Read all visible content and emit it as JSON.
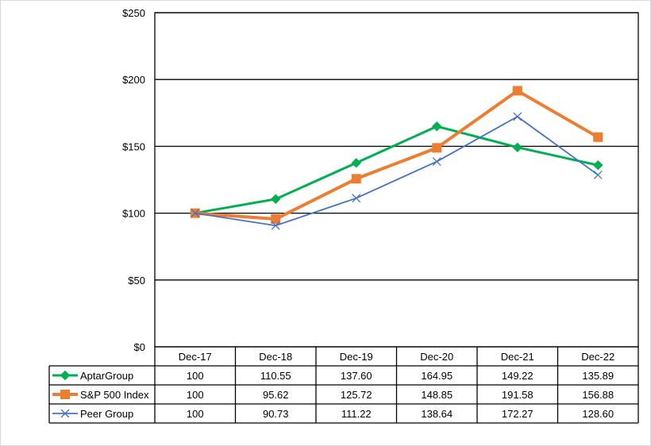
{
  "chart_data": {
    "type": "line",
    "title": "",
    "xlabel": "",
    "ylabel": "",
    "categories": [
      "Dec-17",
      "Dec-18",
      "Dec-19",
      "Dec-20",
      "Dec-21",
      "Dec-22"
    ],
    "ylim": [
      0,
      250
    ],
    "yticks": [
      0,
      50,
      100,
      150,
      200,
      250
    ],
    "ytick_labels": [
      "$0",
      "$50",
      "$100",
      "$150",
      "$200",
      "$250"
    ],
    "grid": true,
    "legend": "data-table-below",
    "series": [
      {
        "name": "AptarGroup",
        "color": "#00b050",
        "marker": "diamond",
        "values": [
          100,
          110.55,
          137.6,
          164.95,
          149.22,
          135.89
        ],
        "display_values": [
          "100",
          "110.55",
          "137.60",
          "164.95",
          "149.22",
          "135.89"
        ]
      },
      {
        "name": "S&P 500 Index",
        "color": "#ed7d31",
        "marker": "square",
        "values": [
          100,
          95.62,
          125.72,
          148.85,
          191.58,
          156.88
        ],
        "display_values": [
          "100",
          "95.62",
          "125.72",
          "148.85",
          "191.58",
          "156.88"
        ]
      },
      {
        "name": "Peer Group",
        "color": "#4472c4",
        "marker": "x",
        "values": [
          100,
          90.73,
          111.22,
          138.64,
          172.27,
          128.6
        ],
        "display_values": [
          "100",
          "90.73",
          "111.22",
          "138.64",
          "172.27",
          "128.60"
        ]
      }
    ]
  }
}
